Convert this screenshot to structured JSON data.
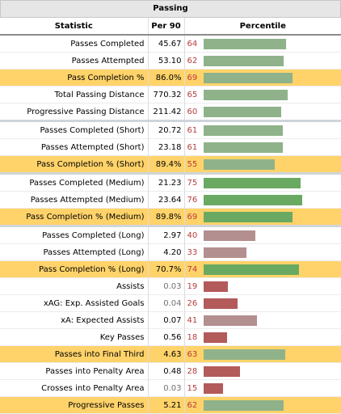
{
  "title": "Passing",
  "headers": {
    "stat": "Statistic",
    "per": "Per 90",
    "pct": "Percentile"
  },
  "colors": {
    "green_high": "#6aa961",
    "green_mid": "#8fb28a",
    "rose": "#b38f8f",
    "red": "#b35a5a",
    "highlight": "#ffd36a",
    "pct_text": "#b63c3c"
  },
  "rows": [
    {
      "stat": "Passes Completed",
      "per": "45.67",
      "pct": "64",
      "pctValue": 64,
      "color": "#8fb28a",
      "highlight": false,
      "group_end": false
    },
    {
      "stat": "Passes Attempted",
      "per": "53.10",
      "pct": "62",
      "pctValue": 62,
      "color": "#8fb28a",
      "highlight": false,
      "group_end": false
    },
    {
      "stat": "Pass Completion %",
      "per": "86.0%",
      "pct": "69",
      "pctValue": 69,
      "color": "#8fb28a",
      "highlight": true,
      "group_end": false
    },
    {
      "stat": "Total Passing Distance",
      "per": "770.32",
      "pct": "65",
      "pctValue": 65,
      "color": "#8fb28a",
      "highlight": false,
      "group_end": false
    },
    {
      "stat": "Progressive Passing Distance",
      "per": "211.42",
      "pct": "60",
      "pctValue": 60,
      "color": "#8fb28a",
      "highlight": false,
      "group_end": true
    },
    {
      "stat": "Passes Completed (Short)",
      "per": "20.72",
      "pct": "61",
      "pctValue": 61,
      "color": "#8fb28a",
      "highlight": false,
      "group_end": false
    },
    {
      "stat": "Passes Attempted (Short)",
      "per": "23.18",
      "pct": "61",
      "pctValue": 61,
      "color": "#8fb28a",
      "highlight": false,
      "group_end": false
    },
    {
      "stat": "Pass Completion % (Short)",
      "per": "89.4%",
      "pct": "55",
      "pctValue": 55,
      "color": "#8fb28a",
      "highlight": true,
      "group_end": true
    },
    {
      "stat": "Passes Completed (Medium)",
      "per": "21.23",
      "pct": "75",
      "pctValue": 75,
      "color": "#6aa961",
      "highlight": false,
      "group_end": false
    },
    {
      "stat": "Passes Attempted (Medium)",
      "per": "23.64",
      "pct": "76",
      "pctValue": 76,
      "color": "#6aa961",
      "highlight": false,
      "group_end": false
    },
    {
      "stat": "Pass Completion % (Medium)",
      "per": "89.8%",
      "pct": "69",
      "pctValue": 69,
      "color": "#6aa961",
      "highlight": true,
      "group_end": true
    },
    {
      "stat": "Passes Completed (Long)",
      "per": "2.97",
      "pct": "40",
      "pctValue": 40,
      "color": "#b38f8f",
      "highlight": false,
      "group_end": false
    },
    {
      "stat": "Passes Attempted (Long)",
      "per": "4.20",
      "pct": "33",
      "pctValue": 33,
      "color": "#b38f8f",
      "highlight": false,
      "group_end": false
    },
    {
      "stat": "Pass Completion % (Long)",
      "per": "70.7%",
      "pct": "74",
      "pctValue": 74,
      "color": "#6aa961",
      "highlight": true,
      "group_end": false
    },
    {
      "stat": "Assists",
      "per": "0.03",
      "pct": "19",
      "pctValue": 19,
      "color": "#b35a5a",
      "highlight": false,
      "group_end": false,
      "dim": true
    },
    {
      "stat": "xAG: Exp. Assisted Goals",
      "per": "0.04",
      "pct": "26",
      "pctValue": 26,
      "color": "#b35a5a",
      "highlight": false,
      "group_end": false,
      "dim": true
    },
    {
      "stat": "xA: Expected Assists",
      "per": "0.07",
      "pct": "41",
      "pctValue": 41,
      "color": "#b38f8f",
      "highlight": false,
      "group_end": false
    },
    {
      "stat": "Key Passes",
      "per": "0.56",
      "pct": "18",
      "pctValue": 18,
      "color": "#b35a5a",
      "highlight": false,
      "group_end": false
    },
    {
      "stat": "Passes into Final Third",
      "per": "4.63",
      "pct": "63",
      "pctValue": 63,
      "color": "#8fb28a",
      "highlight": true,
      "group_end": false
    },
    {
      "stat": "Passes into Penalty Area",
      "per": "0.48",
      "pct": "28",
      "pctValue": 28,
      "color": "#b35a5a",
      "highlight": false,
      "group_end": false
    },
    {
      "stat": "Crosses into Penalty Area",
      "per": "0.03",
      "pct": "15",
      "pctValue": 15,
      "color": "#b35a5a",
      "highlight": false,
      "group_end": false,
      "dim": true
    },
    {
      "stat": "Progressive Passes",
      "per": "5.21",
      "pct": "62",
      "pctValue": 62,
      "color": "#8fb28a",
      "highlight": true,
      "group_end": false
    }
  ]
}
